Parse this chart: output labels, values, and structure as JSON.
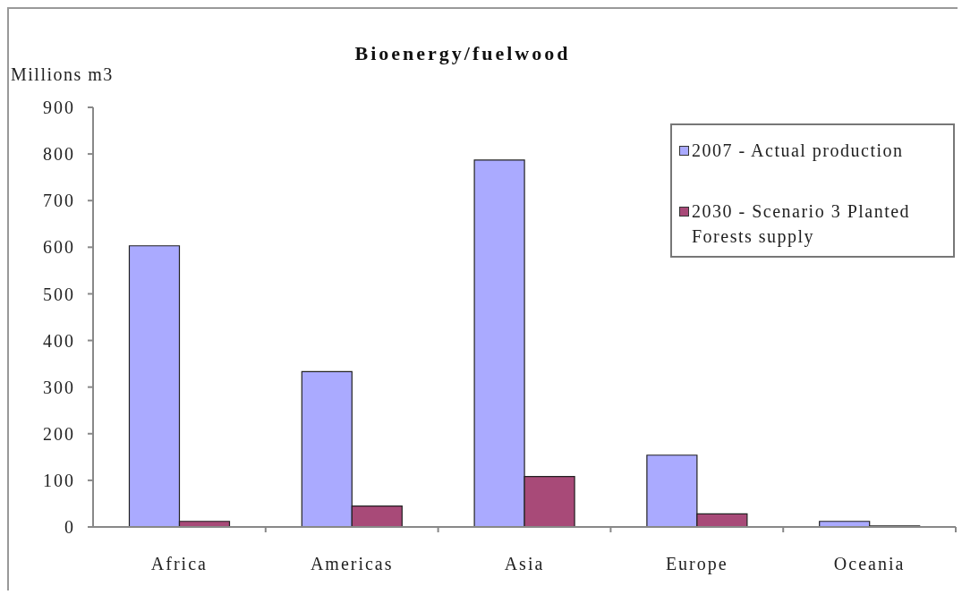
{
  "chart_data": {
    "type": "bar",
    "title": "Bioenergy/fuelwood",
    "ylabel": "Millions m3",
    "categories": [
      "Africa",
      "Americas",
      "Asia",
      "Europe",
      "Oceania"
    ],
    "series": [
      {
        "name": "2007 - Actual production",
        "color": "#aaaaff",
        "values": [
          603,
          333,
          787,
          154,
          12
        ]
      },
      {
        "name": "2030 - Scenario 3 Planted Forests supply",
        "color": "#a84a78",
        "values": [
          12,
          45,
          108,
          28,
          2
        ]
      }
    ],
    "ylim": [
      0,
      900
    ],
    "yticks": [
      0,
      100,
      200,
      300,
      400,
      500,
      600,
      700,
      800,
      900
    ],
    "legend": "top right"
  }
}
